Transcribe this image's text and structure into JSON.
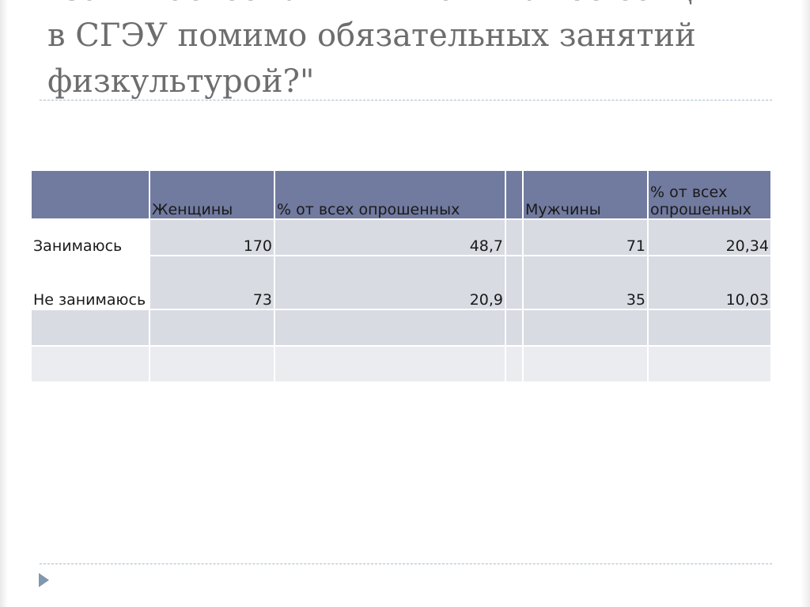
{
  "slide": {
    "title_lines": [
      "\"Занимаетесь ли вы в каких-либо секциях",
      "в СГЭУ помимо обязательных занятий",
      "физкультурой?\""
    ]
  },
  "table": {
    "headers": [
      "",
      "Женщины",
      "% от всех опрошенных",
      "",
      "Мужчины",
      "% от всех опрошенных"
    ],
    "rows": [
      [
        "Занимаюсь",
        "170",
        "48,7",
        "",
        "71",
        "20,34"
      ],
      [
        "Не занимаюсь",
        "73",
        "20,9",
        "",
        "35",
        "10,03"
      ],
      [
        "",
        "",
        "",
        "",
        "",
        ""
      ],
      [
        "",
        "",
        "",
        "",
        "",
        ""
      ]
    ]
  },
  "colors": {
    "header_fill": "#717a9f",
    "cell_fill": "#d9dbe3",
    "cell_fill_light": "#ebecf0",
    "rule": "#a7bccc",
    "bullet": "#8197af"
  },
  "icons": {
    "bullet": "triangle-bullet-icon"
  }
}
